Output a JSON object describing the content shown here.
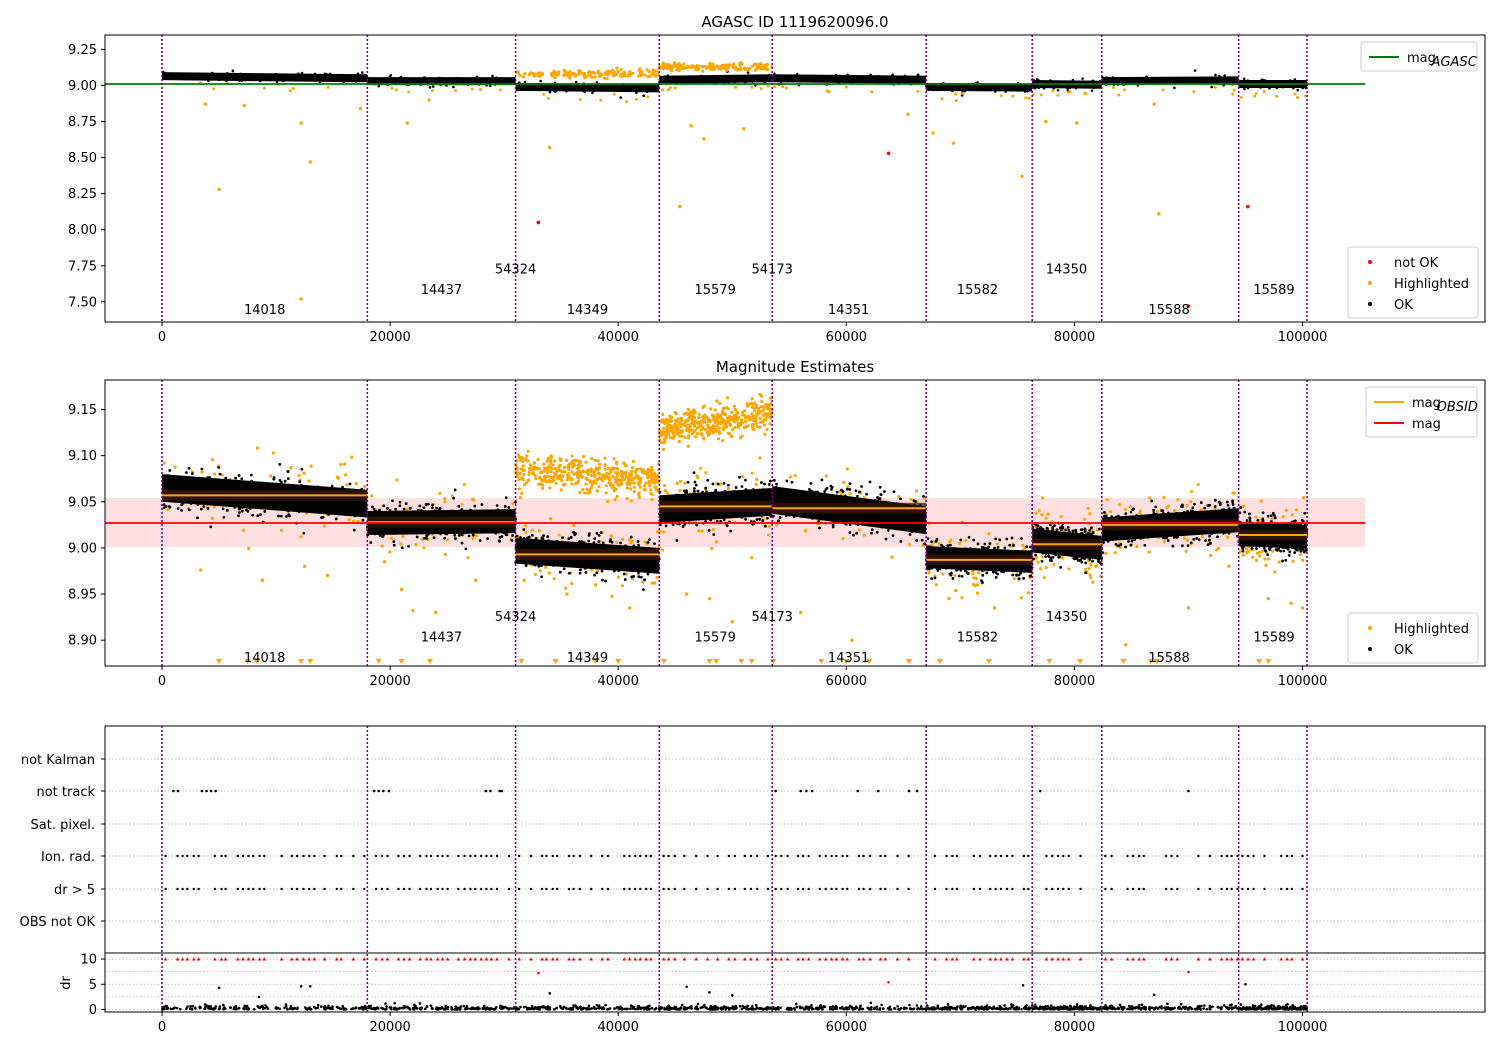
{
  "chart_data": [
    {
      "type": "scatter",
      "title": "AGASC ID 1119620096.0",
      "xlim": [
        -5000,
        116000
      ],
      "ylim": [
        7.36,
        9.35
      ],
      "xticks": [
        0,
        20000,
        40000,
        60000,
        80000,
        100000
      ],
      "yticks": [
        7.5,
        7.75,
        8.0,
        8.25,
        8.5,
        8.75,
        9.0,
        9.25
      ],
      "ytick_labels": [
        "7.50",
        "7.75",
        "8.00",
        "8.25",
        "8.50",
        "8.75",
        "9.00",
        "9.25"
      ],
      "obsid_boundaries": [
        0,
        18000,
        31000,
        43600,
        53500,
        67000,
        76300,
        82400,
        94400,
        100400
      ],
      "obsid_labels": [
        {
          "text": "14018",
          "x": 9000,
          "y": 7.45
        },
        {
          "text": "14437",
          "x": 24500,
          "y": 7.59
        },
        {
          "text": "54324",
          "x": 31000,
          "y": 7.73
        },
        {
          "text": "14349",
          "x": 37300,
          "y": 7.45
        },
        {
          "text": "15579",
          "x": 48500,
          "y": 7.59
        },
        {
          "text": "54173",
          "x": 53500,
          "y": 7.73
        },
        {
          "text": "14351",
          "x": 60200,
          "y": 7.45
        },
        {
          "text": "15582",
          "x": 71500,
          "y": 7.59
        },
        {
          "text": "14350",
          "x": 79300,
          "y": 7.73
        },
        {
          "text": "15588",
          "x": 88300,
          "y": 7.45
        },
        {
          "text": "15589",
          "x": 97500,
          "y": 7.59
        }
      ],
      "mag_agasc_line": {
        "value": 9.01,
        "x_range": [
          -5000,
          105500
        ]
      },
      "segments": [
        {
          "x0": 0,
          "x1": 18000,
          "y0": 9.065,
          "y1": 9.05
        },
        {
          "x0": 18000,
          "x1": 31000,
          "y0": 9.03,
          "y1": 9.03
        },
        {
          "x0": 31000,
          "x1": 43600,
          "y0": 8.99,
          "y1": 8.98
        },
        {
          "x0": 43600,
          "x1": 53500,
          "y0": 9.04,
          "y1": 9.05
        },
        {
          "x0": 53500,
          "x1": 67000,
          "y0": 9.05,
          "y1": 9.04
        },
        {
          "x0": 67000,
          "x1": 76300,
          "y0": 8.99,
          "y1": 8.985
        },
        {
          "x0": 76300,
          "x1": 82400,
          "y0": 9.01,
          "y1": 9.005
        },
        {
          "x0": 82400,
          "x1": 94400,
          "y0": 9.03,
          "y1": 9.035
        },
        {
          "x0": 94400,
          "x1": 100400,
          "y0": 9.01,
          "y1": 9.01
        }
      ],
      "highlight_bands": [
        {
          "x0": 31000,
          "x1": 43600,
          "y": 9.08
        },
        {
          "x0": 43600,
          "x1": 53500,
          "y": 9.13
        }
      ],
      "highlighted_outliers": [
        [
          3800,
          8.87
        ],
        [
          5000,
          8.28
        ],
        [
          7200,
          8.86
        ],
        [
          12200,
          8.74
        ],
        [
          13000,
          8.47
        ],
        [
          12200,
          7.52
        ],
        [
          17400,
          8.84
        ],
        [
          21500,
          8.74
        ],
        [
          23400,
          8.9
        ],
        [
          34000,
          8.57
        ],
        [
          45400,
          8.16
        ],
        [
          46400,
          8.72
        ],
        [
          47500,
          8.63
        ],
        [
          51000,
          8.7
        ],
        [
          65400,
          8.8
        ],
        [
          67600,
          8.67
        ],
        [
          69400,
          8.6
        ],
        [
          75400,
          8.37
        ],
        [
          77500,
          8.75
        ],
        [
          80200,
          8.74
        ],
        [
          87400,
          8.11
        ],
        [
          87000,
          8.87
        ]
      ],
      "not_ok_points": [
        [
          33000,
          8.05
        ],
        [
          63700,
          8.53
        ],
        [
          95200,
          8.16
        ],
        [
          90000,
          7.47
        ]
      ],
      "legend_top": [
        {
          "label": "mag",
          "sub": "AGASC",
          "color": "#008000"
        }
      ],
      "legend_bottom": [
        {
          "label": "not OK",
          "color": "#ff0000"
        },
        {
          "label": "Highlighted",
          "color": "#ffa500"
        },
        {
          "label": "OK",
          "color": "#000000"
        }
      ],
      "colors": {
        "ok": "#000000",
        "highlighted": "#ffa500",
        "not_ok": "#ff0000",
        "obsid_line": "#800080"
      }
    },
    {
      "type": "scatter",
      "title": "Magnitude Estimates",
      "xlim": [
        -5000,
        116000
      ],
      "ylim": [
        8.872,
        9.182
      ],
      "xticks": [
        0,
        20000,
        40000,
        60000,
        80000,
        100000
      ],
      "yticks": [
        8.9,
        8.95,
        9.0,
        9.05,
        9.1,
        9.15
      ],
      "ytick_labels": [
        "8.90",
        "8.95",
        "9.00",
        "9.05",
        "9.10",
        "9.15"
      ],
      "obsid_boundaries": [
        0,
        18000,
        31000,
        43600,
        53500,
        67000,
        76300,
        82400,
        94400,
        100400
      ],
      "obsid_labels": [
        {
          "text": "14018",
          "x": 9000,
          "y": 8.882
        },
        {
          "text": "14437",
          "x": 24500,
          "y": 8.904
        },
        {
          "text": "54324",
          "x": 31000,
          "y": 8.926
        },
        {
          "text": "14349",
          "x": 37300,
          "y": 8.882
        },
        {
          "text": "15579",
          "x": 48500,
          "y": 8.904
        },
        {
          "text": "54173",
          "x": 53500,
          "y": 8.926
        },
        {
          "text": "14351",
          "x": 60200,
          "y": 8.882
        },
        {
          "text": "15582",
          "x": 71500,
          "y": 8.904
        },
        {
          "text": "14350",
          "x": 79300,
          "y": 8.926
        },
        {
          "text": "15588",
          "x": 88300,
          "y": 8.882
        },
        {
          "text": "15589",
          "x": 97500,
          "y": 8.904
        }
      ],
      "mag_line": {
        "value": 9.027,
        "band": [
          9.001,
          9.054
        ],
        "x_range": [
          -5000,
          105500
        ]
      },
      "segments": [
        {
          "x0": 0,
          "x1": 18000,
          "mean": 9.057,
          "y0": 9.065,
          "y1": 9.048,
          "spread": 0.015
        },
        {
          "x0": 18000,
          "x1": 31000,
          "mean": 9.028,
          "y0": 9.027,
          "y1": 9.029,
          "spread": 0.013
        },
        {
          "x0": 31000,
          "x1": 43600,
          "mean": 8.993,
          "y0": 8.997,
          "y1": 8.986,
          "spread": 0.014
        },
        {
          "x0": 43600,
          "x1": 53500,
          "mean": 9.045,
          "y0": 9.042,
          "y1": 9.05,
          "spread": 0.015
        },
        {
          "x0": 53500,
          "x1": 67000,
          "mean": 9.043,
          "y0": 9.052,
          "y1": 9.03,
          "spread": 0.015
        },
        {
          "x0": 67000,
          "x1": 76300,
          "mean": 8.987,
          "y0": 8.99,
          "y1": 8.985,
          "spread": 0.012
        },
        {
          "x0": 76300,
          "x1": 82400,
          "mean": 9.004,
          "y0": 9.008,
          "y1": 9.0,
          "spread": 0.013
        },
        {
          "x0": 82400,
          "x1": 94400,
          "mean": 9.025,
          "y0": 9.02,
          "y1": 9.03,
          "spread": 0.013
        },
        {
          "x0": 94400,
          "x1": 100400,
          "mean": 9.014,
          "y0": 9.015,
          "y1": 9.012,
          "spread": 0.013
        }
      ],
      "highlight_bands": [
        {
          "x0": 31000,
          "x1": 43600,
          "y0": 9.085,
          "y1": 9.072
        },
        {
          "x0": 43600,
          "x1": 53500,
          "y0": 9.128,
          "y1": 9.145
        }
      ],
      "highlighted_outliers": [
        [
          3400,
          8.976
        ],
        [
          8800,
          8.965
        ],
        [
          14500,
          8.97
        ],
        [
          19500,
          8.985
        ],
        [
          21000,
          8.955
        ],
        [
          22000,
          8.932
        ],
        [
          24000,
          8.93
        ],
        [
          35500,
          8.95
        ],
        [
          38000,
          8.96
        ],
        [
          41000,
          8.935
        ],
        [
          46000,
          8.95
        ],
        [
          48000,
          8.945
        ],
        [
          50000,
          8.92
        ],
        [
          56000,
          8.93
        ],
        [
          60500,
          8.9
        ],
        [
          69000,
          8.945
        ],
        [
          71500,
          8.96
        ],
        [
          73000,
          8.935
        ],
        [
          84500,
          8.895
        ],
        [
          90000,
          8.935
        ],
        [
          97000,
          8.945
        ],
        [
          99000,
          8.94
        ],
        [
          100000,
          8.935
        ],
        [
          12500,
          8.98
        ],
        [
          27500,
          8.965
        ],
        [
          64000,
          8.99
        ]
      ],
      "bottom_markers": [
        5000,
        7500,
        8300,
        12200,
        13000,
        19000,
        21000,
        23500,
        31500,
        34500,
        38000,
        40000,
        44000,
        48000,
        48600,
        50800,
        51700,
        53600,
        57800,
        60000,
        62000,
        65500,
        68200,
        72500,
        77800,
        80500,
        84300,
        86700,
        87200,
        96200,
        97000
      ],
      "legend_top": [
        {
          "label": "mag",
          "sub": "OBSID",
          "color": "#ffa500"
        },
        {
          "label": "mag",
          "sub": "",
          "color": "#ff0000"
        }
      ],
      "legend_bottom": [
        {
          "label": "Highlighted",
          "color": "#ffa500"
        },
        {
          "label": "OK",
          "color": "#000000"
        }
      ],
      "colors": {
        "band": "#ffe0e0",
        "mean_band": "#3a1a05"
      }
    },
    {
      "type": "scatter",
      "title": "",
      "xlim": [
        -5000,
        116000
      ],
      "xticks": [
        0,
        20000,
        40000,
        60000,
        80000,
        100000
      ],
      "obsid_boundaries": [
        0,
        18000,
        31000,
        43600,
        53500,
        67000,
        76300,
        82400,
        94400,
        100400
      ],
      "flags": [
        "not Kalman",
        "not track",
        "Sat. pixel.",
        "Ion. rad.",
        "dr > 5",
        "OBS not OK"
      ],
      "not_track_points": [
        1000,
        1400,
        3500,
        3900,
        4300,
        4700,
        18600,
        19000,
        19400,
        19900,
        28400,
        28800,
        29600,
        29800,
        53800,
        56000,
        56500,
        57000,
        61000,
        62800,
        65500,
        66200,
        77000,
        90000
      ],
      "dr_axis": {
        "ylim": [
          -0.5,
          11.2
        ],
        "yticks": [
          0,
          5,
          10
        ],
        "ylabel": "dr"
      },
      "dr_outliers": [
        [
          5000,
          4.3
        ],
        [
          8500,
          2.5
        ],
        [
          12200,
          4.6
        ],
        [
          13000,
          4.6
        ],
        [
          33000,
          7.2
        ],
        [
          34000,
          3.2
        ],
        [
          46000,
          4.5
        ],
        [
          48000,
          3.4
        ],
        [
          50000,
          2.8
        ],
        [
          63700,
          5.4
        ],
        [
          75500,
          4.8
        ],
        [
          87000,
          2.9
        ],
        [
          90000,
          7.4
        ],
        [
          95000,
          5.0
        ]
      ]
    }
  ]
}
